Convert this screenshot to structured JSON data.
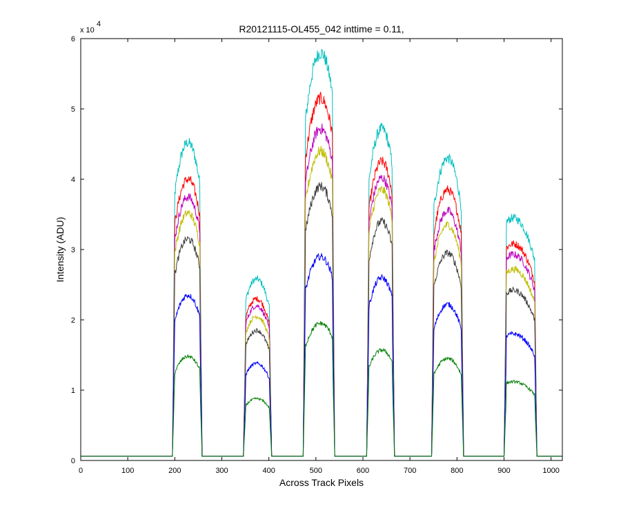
{
  "chart_data": {
    "type": "line",
    "title": "R20121115-OL455_042 inttime = 0.11,",
    "xlabel": "Across Track Pixels",
    "ylabel": "Intensity (ADU)",
    "y_multiplier": {
      "base": "x 10",
      "exponent": "4"
    },
    "xlim": [
      0,
      1024
    ],
    "ylim": [
      0,
      6
    ],
    "x_ticks": [
      "0",
      "100",
      "200",
      "300",
      "400",
      "500",
      "600",
      "700",
      "800",
      "900",
      "1000"
    ],
    "y_ticks": [
      "0",
      "1",
      "2",
      "3",
      "4",
      "5",
      "6"
    ],
    "grid": false,
    "baseline": 0.06,
    "bumps": [
      {
        "x_start": 197,
        "x_end": 256,
        "x_peak": 228
      },
      {
        "x_start": 348,
        "x_end": 404,
        "x_peak": 374
      },
      {
        "x_start": 475,
        "x_end": 538,
        "x_peak": 510
      },
      {
        "x_start": 610,
        "x_end": 665,
        "x_peak": 640
      },
      {
        "x_start": 748,
        "x_end": 812,
        "x_peak": 780
      },
      {
        "x_start": 902,
        "x_end": 968,
        "x_peak": 920
      }
    ],
    "series": [
      {
        "color": "#00bfbf",
        "peaks": [
          4.52,
          2.58,
          5.8,
          4.72,
          4.3,
          3.45
        ]
      },
      {
        "color": "#ff0000",
        "peaks": [
          4.0,
          2.3,
          5.15,
          4.25,
          3.85,
          3.08
        ]
      },
      {
        "color": "#bf00bf",
        "peaks": [
          3.75,
          2.2,
          4.72,
          4.02,
          3.55,
          2.93
        ]
      },
      {
        "color": "#bfbf00",
        "peaks": [
          3.52,
          2.05,
          4.4,
          3.85,
          3.35,
          2.72
        ]
      },
      {
        "color": "#3f3f3f",
        "peaks": [
          3.15,
          1.85,
          3.9,
          3.4,
          2.95,
          2.42
        ]
      },
      {
        "color": "#0000ff",
        "peaks": [
          2.35,
          1.38,
          2.9,
          2.6,
          2.22,
          1.8
        ]
      },
      {
        "color": "#008000",
        "peaks": [
          1.48,
          0.88,
          1.95,
          1.57,
          1.45,
          1.12
        ]
      }
    ]
  }
}
